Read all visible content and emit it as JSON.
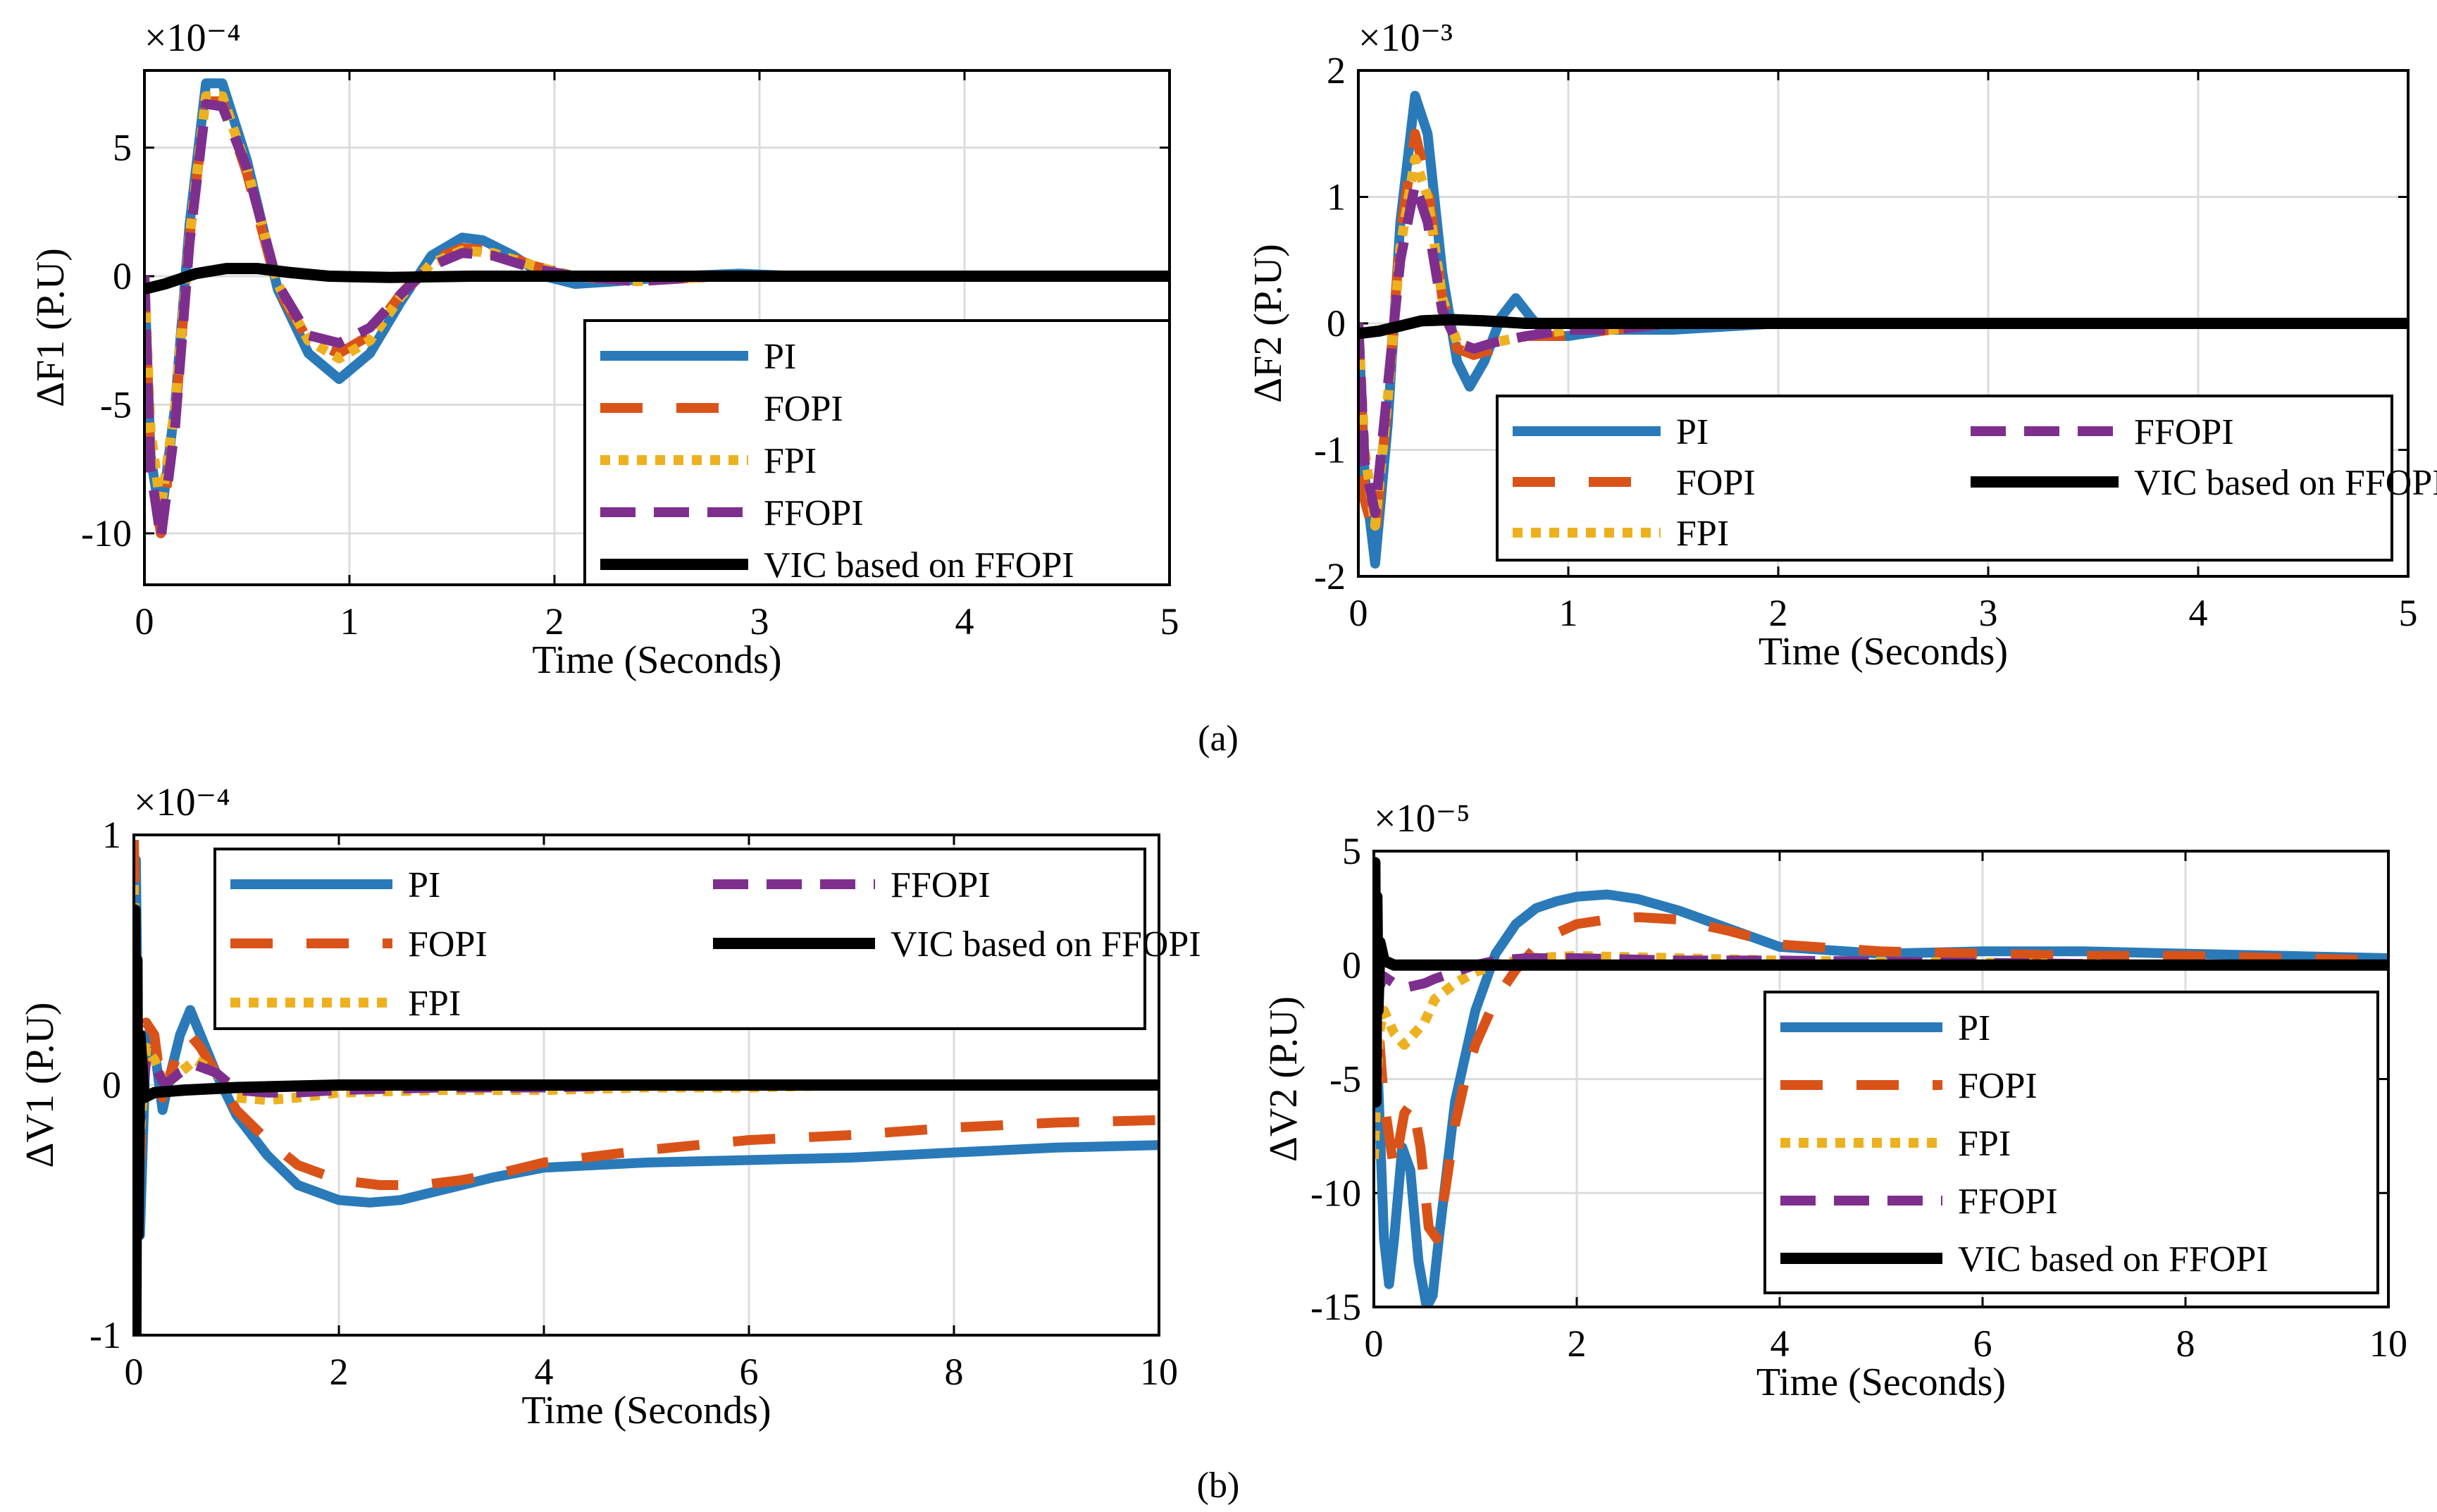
{
  "figure": {
    "label_a": "(a)",
    "label_b": "(b)"
  },
  "colors": {
    "PI": "#2a7ab9",
    "FOPI": "#d95319",
    "FPI": "#edb120",
    "FFOPI": "#7e2f8e",
    "VIC based on FFOPI": "#000000"
  },
  "chart_data": [
    {
      "id": "dF1",
      "type": "line",
      "ylabel": "ΔF1 (P.U)",
      "xlabel": "Time (Seconds)",
      "exponent": "×10⁻⁴",
      "xlim": [
        0,
        5
      ],
      "ylim": [
        -12,
        8
      ],
      "xticks": [
        0,
        1,
        2,
        3,
        4,
        5
      ],
      "yticks": [
        -10,
        -5,
        0,
        5
      ],
      "legend_labels": [
        "PI",
        "FOPI",
        "FPI",
        "FFOPI",
        "VIC based on FFOPI"
      ],
      "legend_columns": 1,
      "legend_position": "bottom-right",
      "series": [
        {
          "name": "PI",
          "x": [
            0,
            0.03,
            0.08,
            0.15,
            0.22,
            0.3,
            0.38,
            0.5,
            0.65,
            0.8,
            0.95,
            1.1,
            1.25,
            1.4,
            1.55,
            1.65,
            1.8,
            1.95,
            2.1,
            2.3,
            2.6,
            2.9,
            3.2,
            3.6,
            4.0,
            5.0
          ],
          "y": [
            0,
            -7,
            -9.5,
            -5,
            2,
            7.5,
            7.5,
            4.5,
            -0.5,
            -3,
            -4,
            -3,
            -1,
            0.8,
            1.5,
            1.4,
            0.8,
            0,
            -0.3,
            -0.2,
            0,
            0.1,
            0,
            0,
            0,
            0
          ]
        },
        {
          "name": "FOPI",
          "x": [
            0,
            0.03,
            0.08,
            0.15,
            0.22,
            0.3,
            0.38,
            0.5,
            0.65,
            0.8,
            0.95,
            1.1,
            1.25,
            1.4,
            1.55,
            1.7,
            1.9,
            2.1,
            2.4,
            2.8,
            3.2,
            4.0,
            5.0
          ],
          "y": [
            0,
            -7.5,
            -10,
            -5.5,
            1.5,
            6.8,
            6.8,
            4,
            -0.5,
            -2.5,
            -3,
            -2.3,
            -0.7,
            0.6,
            1.1,
            1,
            0.4,
            0,
            -0.2,
            0,
            0,
            0,
            0
          ]
        },
        {
          "name": "FPI",
          "x": [
            0,
            0.03,
            0.08,
            0.15,
            0.22,
            0.3,
            0.38,
            0.5,
            0.65,
            0.8,
            0.95,
            1.1,
            1.25,
            1.4,
            1.55,
            1.7,
            1.9,
            2.1,
            2.4,
            2.8,
            3.2,
            4.0,
            5.0
          ],
          "y": [
            0,
            -6,
            -9,
            -5,
            1.5,
            7,
            7,
            4.2,
            -0.3,
            -2.5,
            -3.2,
            -2.5,
            -0.8,
            0.5,
            1,
            0.9,
            0.4,
            0,
            -0.2,
            0,
            0,
            0,
            0
          ]
        },
        {
          "name": "FFOPI",
          "x": [
            0,
            0.03,
            0.08,
            0.15,
            0.22,
            0.3,
            0.38,
            0.5,
            0.65,
            0.8,
            0.95,
            1.1,
            1.25,
            1.4,
            1.55,
            1.7,
            1.9,
            2.1,
            2.4,
            2.8,
            3.2,
            4.0,
            5.0
          ],
          "y": [
            0,
            -7.5,
            -10.2,
            -5.8,
            1.3,
            6.7,
            6.6,
            4.2,
            -0.3,
            -2.3,
            -2.6,
            -2,
            -0.7,
            0.4,
            0.9,
            0.8,
            0.3,
            0,
            -0.2,
            0,
            0,
            0,
            0
          ]
        },
        {
          "name": "VIC based on FFOPI",
          "x": [
            0,
            0.1,
            0.25,
            0.4,
            0.55,
            0.7,
            0.9,
            1.2,
            1.6,
            2.0,
            3.0,
            4.0,
            5.0
          ],
          "y": [
            -0.5,
            -0.3,
            0.1,
            0.3,
            0.3,
            0.15,
            0,
            -0.05,
            0,
            0,
            0,
            0,
            0
          ]
        }
      ]
    },
    {
      "id": "dF2",
      "type": "line",
      "ylabel": "ΔF2 (P.U)",
      "xlabel": "Time (Seconds)",
      "exponent": "×10⁻³",
      "xlim": [
        0,
        5
      ],
      "ylim": [
        -2,
        2
      ],
      "xticks": [
        0,
        1,
        2,
        3,
        4,
        5
      ],
      "yticks": [
        -2,
        -1,
        0,
        1,
        2
      ],
      "legend_labels": [
        "PI",
        "FOPI",
        "FPI",
        "FFOPI",
        "VIC based on FFOPI"
      ],
      "legend_columns": 2,
      "legend_position": "bottom-right",
      "series": [
        {
          "name": "PI",
          "x": [
            0,
            0.03,
            0.08,
            0.14,
            0.2,
            0.27,
            0.33,
            0.4,
            0.47,
            0.53,
            0.6,
            0.68,
            0.75,
            0.82,
            0.9,
            1.0,
            1.2,
            1.5,
            2.0,
            5.0
          ],
          "y": [
            0,
            -1.2,
            -1.9,
            -0.8,
            0.8,
            1.8,
            1.5,
            0.4,
            -0.3,
            -0.5,
            -0.3,
            0.05,
            0.2,
            0.05,
            -0.1,
            -0.1,
            -0.05,
            -0.05,
            0,
            0
          ]
        },
        {
          "name": "FOPI",
          "x": [
            0,
            0.03,
            0.08,
            0.14,
            0.2,
            0.27,
            0.33,
            0.4,
            0.47,
            0.55,
            0.65,
            0.8,
            1.0,
            1.2,
            1.5,
            2.0,
            5.0
          ],
          "y": [
            0,
            -1.4,
            -1.7,
            -0.6,
            0.7,
            1.5,
            1.1,
            0.2,
            -0.2,
            -0.25,
            -0.2,
            -0.1,
            -0.1,
            -0.05,
            0,
            0,
            0
          ]
        },
        {
          "name": "FPI",
          "x": [
            0,
            0.03,
            0.08,
            0.14,
            0.2,
            0.27,
            0.33,
            0.4,
            0.47,
            0.55,
            0.65,
            0.8,
            1.0,
            1.2,
            1.5,
            2.0,
            5.0
          ],
          "y": [
            0,
            -1,
            -1.6,
            -0.6,
            0.6,
            1.3,
            1,
            0.2,
            -0.15,
            -0.2,
            -0.15,
            -0.1,
            -0.05,
            -0.05,
            0,
            0,
            0
          ]
        },
        {
          "name": "FFOPI",
          "x": [
            0,
            0.03,
            0.08,
            0.14,
            0.2,
            0.27,
            0.33,
            0.4,
            0.47,
            0.55,
            0.65,
            0.8,
            1.0,
            1.2,
            1.5,
            2.0,
            5.0
          ],
          "y": [
            0,
            -1.1,
            -1.5,
            -0.5,
            0.5,
            1.1,
            0.8,
            0.1,
            -0.15,
            -0.2,
            -0.15,
            -0.1,
            -0.05,
            -0.05,
            0,
            0,
            0
          ]
        },
        {
          "name": "VIC based on FFOPI",
          "x": [
            0,
            0.1,
            0.2,
            0.3,
            0.45,
            0.6,
            0.8,
            1.0,
            1.5,
            2.0,
            5.0
          ],
          "y": [
            -0.08,
            -0.06,
            -0.02,
            0.02,
            0.03,
            0.02,
            0,
            0,
            0,
            0,
            0
          ]
        }
      ]
    },
    {
      "id": "dV1",
      "type": "line",
      "ylabel": "ΔV1 (P.U)",
      "xlabel": "Time (Seconds)",
      "exponent": "×10⁻⁴",
      "xlim": [
        0,
        10
      ],
      "ylim": [
        -1,
        1
      ],
      "xticks": [
        0,
        2,
        4,
        6,
        8,
        10
      ],
      "yticks": [
        -1,
        0,
        1
      ],
      "legend_labels": [
        "PI",
        "FOPI",
        "FPI",
        "FFOPI",
        "VIC based on FFOPI"
      ],
      "legend_columns": 2,
      "legend_position": "top",
      "series": [
        {
          "name": "PI",
          "x": [
            0,
            0.02,
            0.06,
            0.12,
            0.2,
            0.28,
            0.36,
            0.45,
            0.55,
            0.65,
            0.8,
            1.0,
            1.3,
            1.6,
            2.0,
            2.3,
            2.6,
            3.0,
            3.5,
            4.0,
            5.0,
            6.0,
            7.0,
            8.0,
            9.0,
            10.0
          ],
          "y": [
            0,
            0.9,
            -0.6,
            0.2,
            0.15,
            -0.1,
            0.05,
            0.2,
            0.3,
            0.2,
            0.05,
            -0.12,
            -0.28,
            -0.4,
            -0.46,
            -0.47,
            -0.46,
            -0.42,
            -0.37,
            -0.33,
            -0.31,
            -0.3,
            -0.29,
            -0.27,
            -0.25,
            -0.24
          ]
        },
        {
          "name": "FOPI",
          "x": [
            0,
            0.02,
            0.06,
            0.12,
            0.2,
            0.28,
            0.36,
            0.45,
            0.55,
            0.65,
            0.8,
            1.0,
            1.3,
            1.6,
            2.0,
            2.4,
            2.8,
            3.2,
            3.6,
            4.0,
            5.0,
            6.0,
            7.0,
            8.0,
            9.0,
            10.0
          ],
          "y": [
            0.98,
            0.5,
            -0.3,
            0.25,
            0.2,
            -0.05,
            0.05,
            0.15,
            0.2,
            0.15,
            0.05,
            -0.1,
            -0.22,
            -0.32,
            -0.38,
            -0.4,
            -0.4,
            -0.38,
            -0.35,
            -0.31,
            -0.26,
            -0.22,
            -0.2,
            -0.17,
            -0.15,
            -0.14
          ]
        },
        {
          "name": "FPI",
          "x": [
            0,
            0.02,
            0.06,
            0.12,
            0.2,
            0.3,
            0.45,
            0.6,
            0.8,
            1.0,
            1.3,
            1.6,
            2.0,
            3.0,
            4.0,
            5.0,
            6.0,
            7.0,
            8.0,
            9.0,
            10.0
          ],
          "y": [
            0.8,
            0.4,
            -0.2,
            0.15,
            0.1,
            0,
            0.05,
            0.1,
            0.05,
            -0.05,
            -0.06,
            -0.05,
            -0.03,
            -0.02,
            -0.02,
            -0.01,
            -0.01,
            0,
            0,
            0,
            0
          ]
        },
        {
          "name": "FFOPI",
          "x": [
            0,
            0.02,
            0.06,
            0.12,
            0.2,
            0.3,
            0.45,
            0.6,
            0.8,
            1.0,
            1.3,
            1.6,
            2.0,
            3.0,
            4.0,
            5.0,
            6.0,
            7.0,
            8.0,
            9.0,
            10.0
          ],
          "y": [
            0,
            0.3,
            -0.15,
            0.1,
            0.08,
            0,
            0.05,
            0.08,
            0.05,
            -0.02,
            -0.03,
            -0.03,
            -0.02,
            -0.01,
            -0.01,
            0,
            0,
            0,
            0,
            0,
            0
          ]
        },
        {
          "name": "VIC based on FFOPI",
          "x": [
            0,
            0.01,
            0.02,
            0.03,
            0.04,
            0.06,
            0.1,
            0.2,
            0.5,
            1.0,
            2.0,
            4.0,
            6.0,
            8.0,
            10.0
          ],
          "y": [
            0,
            0.7,
            -1,
            0.5,
            -0.6,
            0.2,
            -0.05,
            -0.03,
            -0.02,
            -0.01,
            0,
            0,
            0,
            0,
            0
          ]
        }
      ]
    },
    {
      "id": "dV2",
      "type": "line",
      "ylabel": "ΔV2 (P.U)",
      "xlabel": "Time (Seconds)",
      "exponent": "×10⁻⁵",
      "xlim": [
        0,
        10
      ],
      "ylim": [
        -15,
        5
      ],
      "xticks": [
        0,
        2,
        4,
        6,
        8,
        10
      ],
      "yticks": [
        -15,
        -10,
        -5,
        0,
        5
      ],
      "legend_labels": [
        "PI",
        "FOPI",
        "FPI",
        "FFOPI",
        "VIC based on FFOPI"
      ],
      "legend_columns": 1,
      "legend_position": "bottom-right",
      "series": [
        {
          "name": "PI",
          "x": [
            0,
            0.05,
            0.1,
            0.15,
            0.2,
            0.28,
            0.36,
            0.44,
            0.52,
            0.58,
            0.64,
            0.72,
            0.8,
            0.9,
            1.0,
            1.2,
            1.4,
            1.6,
            1.8,
            2.0,
            2.3,
            2.6,
            3.0,
            3.5,
            4.0,
            5.0,
            6.0,
            7.0,
            8.0,
            9.0,
            10.0
          ],
          "y": [
            0,
            -6,
            -12,
            -14,
            -12,
            -8,
            -9,
            -13,
            -15,
            -14.5,
            -12,
            -9,
            -6,
            -4,
            -2,
            0.5,
            1.8,
            2.5,
            2.8,
            3,
            3.1,
            2.9,
            2.4,
            1.6,
            0.8,
            0.5,
            0.6,
            0.6,
            0.5,
            0.4,
            0.3
          ]
        },
        {
          "name": "FOPI",
          "x": [
            0,
            0.05,
            0.1,
            0.2,
            0.3,
            0.38,
            0.46,
            0.54,
            0.62,
            0.7,
            0.8,
            0.9,
            1.0,
            1.2,
            1.4,
            1.6,
            1.8,
            2.0,
            2.3,
            2.6,
            3.0,
            3.5,
            4.0,
            5.0,
            6.0,
            7.0,
            8.0,
            9.0,
            10.0
          ],
          "y": [
            0,
            -3,
            -6,
            -9,
            -6.5,
            -6,
            -8,
            -11.5,
            -12,
            -10,
            -7,
            -5,
            -3.5,
            -1.5,
            -0.2,
            0.8,
            1.4,
            1.8,
            2,
            2.1,
            2,
            1.5,
            0.9,
            0.6,
            0.5,
            0.4,
            0.4,
            0.3,
            0.2
          ]
        },
        {
          "name": "FPI",
          "x": [
            0,
            0.05,
            0.1,
            0.2,
            0.3,
            0.4,
            0.5,
            0.6,
            0.8,
            1.0,
            1.2,
            1.5,
            2.0,
            3.0,
            4.0,
            6.0,
            8.0,
            10.0
          ],
          "y": [
            -8.5,
            -3,
            -2,
            -3,
            -3.5,
            -3,
            -2.5,
            -1.5,
            -0.8,
            -0.3,
            0,
            0.3,
            0.4,
            0.3,
            0.2,
            0.1,
            0,
            0
          ]
        },
        {
          "name": "FFOPI",
          "x": [
            0,
            0.05,
            0.1,
            0.2,
            0.3,
            0.4,
            0.5,
            0.6,
            0.8,
            1.0,
            1.2,
            1.5,
            2.0,
            3.0,
            4.0,
            6.0,
            8.0,
            10.0
          ],
          "y": [
            -1.5,
            -1,
            -0.5,
            -0.8,
            -1,
            -0.9,
            -0.8,
            -0.6,
            -0.3,
            0,
            0.2,
            0.3,
            0.3,
            0.2,
            0.2,
            0.1,
            0,
            0
          ]
        },
        {
          "name": "VIC based on FFOPI",
          "x": [
            0,
            0.01,
            0.02,
            0.03,
            0.04,
            0.06,
            0.1,
            0.2,
            0.5,
            1.0,
            2.0,
            4.0,
            6.0,
            8.0,
            10.0
          ],
          "y": [
            0,
            4.5,
            -6,
            3,
            -2,
            1,
            0.2,
            0,
            0,
            0,
            0,
            0,
            0,
            0,
            0
          ]
        }
      ]
    }
  ]
}
